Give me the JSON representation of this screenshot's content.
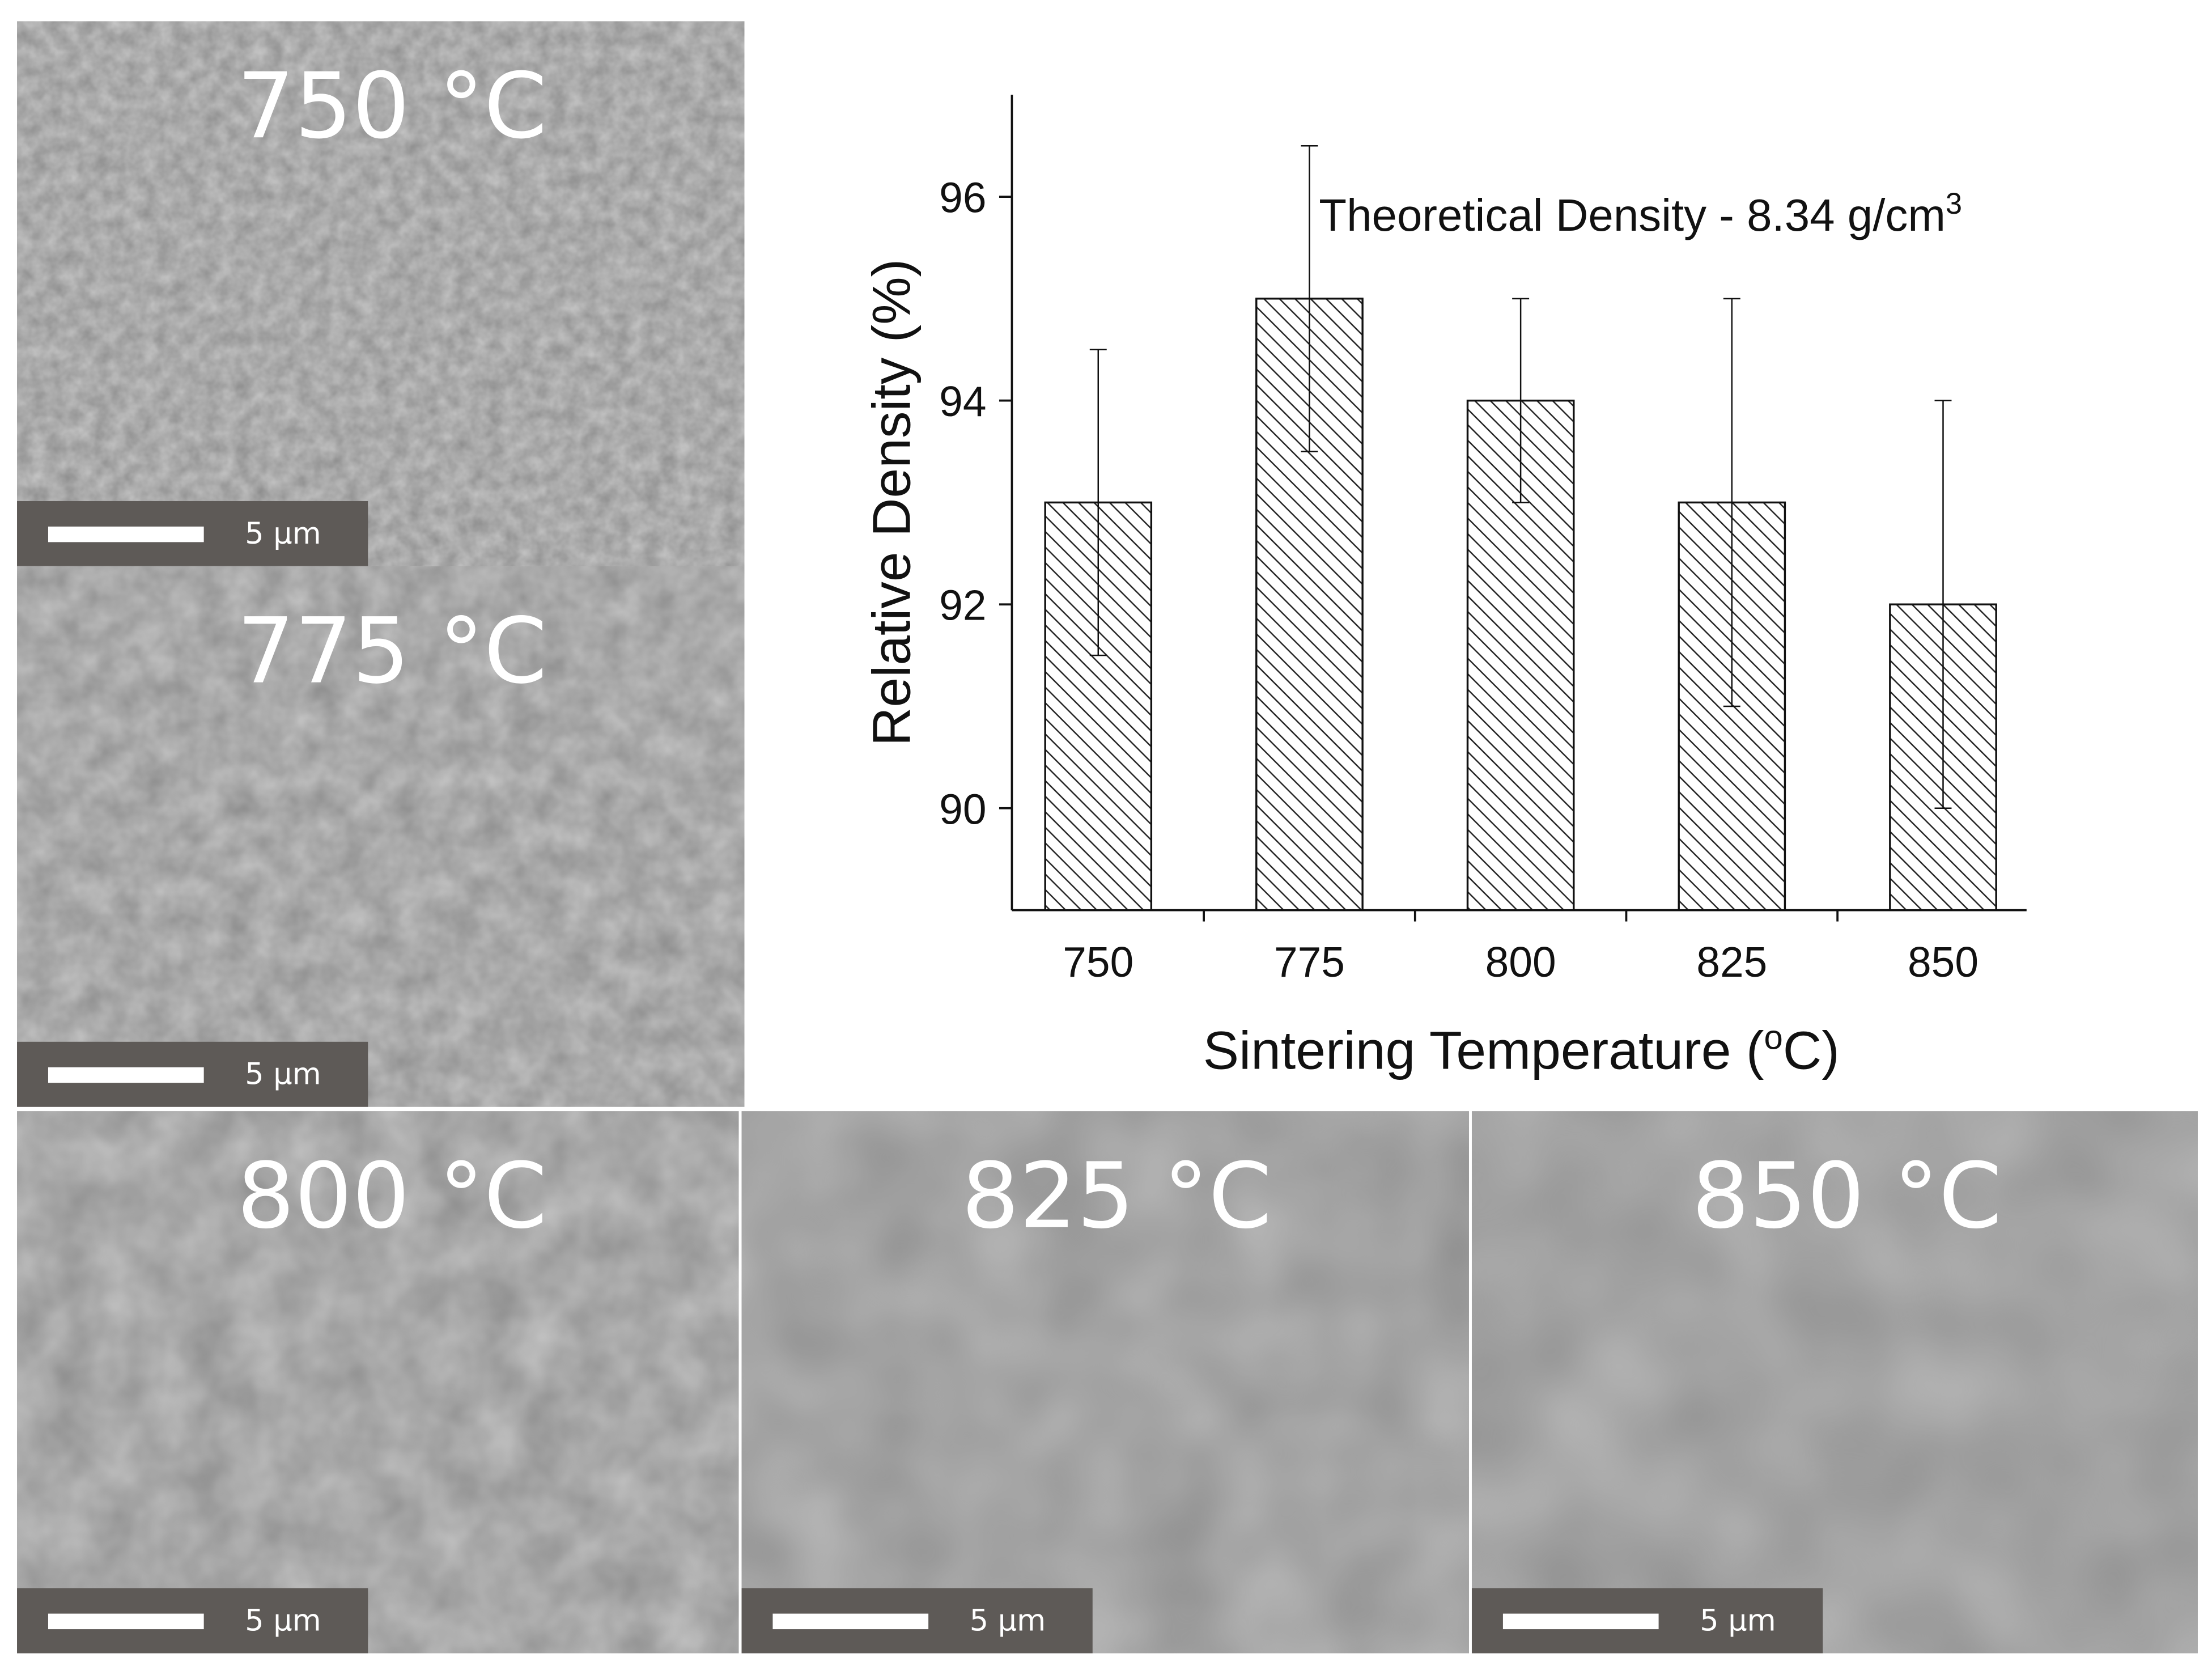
{
  "panels": [
    {
      "label": "750 °C",
      "scale_bar": "5 µm"
    },
    {
      "label": "775 °C",
      "scale_bar": "5 µm"
    },
    {
      "label": "800 °C",
      "scale_bar": "5 µm"
    },
    {
      "label": "825 °C",
      "scale_bar": "5 µm"
    },
    {
      "label": "850 °C",
      "scale_bar": "5 µm"
    }
  ],
  "chart_data": {
    "type": "bar",
    "categories": [
      "750",
      "775",
      "800",
      "825",
      "850"
    ],
    "values": [
      93,
      95,
      94,
      93,
      92
    ],
    "errors": [
      1.5,
      1.5,
      1,
      2,
      2
    ],
    "color": "#ffffff",
    "hatch_color": "#222222",
    "ylim": [
      89,
      97
    ],
    "yticks": [
      90,
      92,
      94,
      96
    ],
    "ylabel": "Relative Density (%)",
    "xlabel": {
      "text": "Sintering Temperature (",
      "superscript": "o",
      "suffix": "C)"
    },
    "annotation": {
      "text": "Theoretical Density - 8.34 g/cm",
      "superscript": "3"
    }
  }
}
